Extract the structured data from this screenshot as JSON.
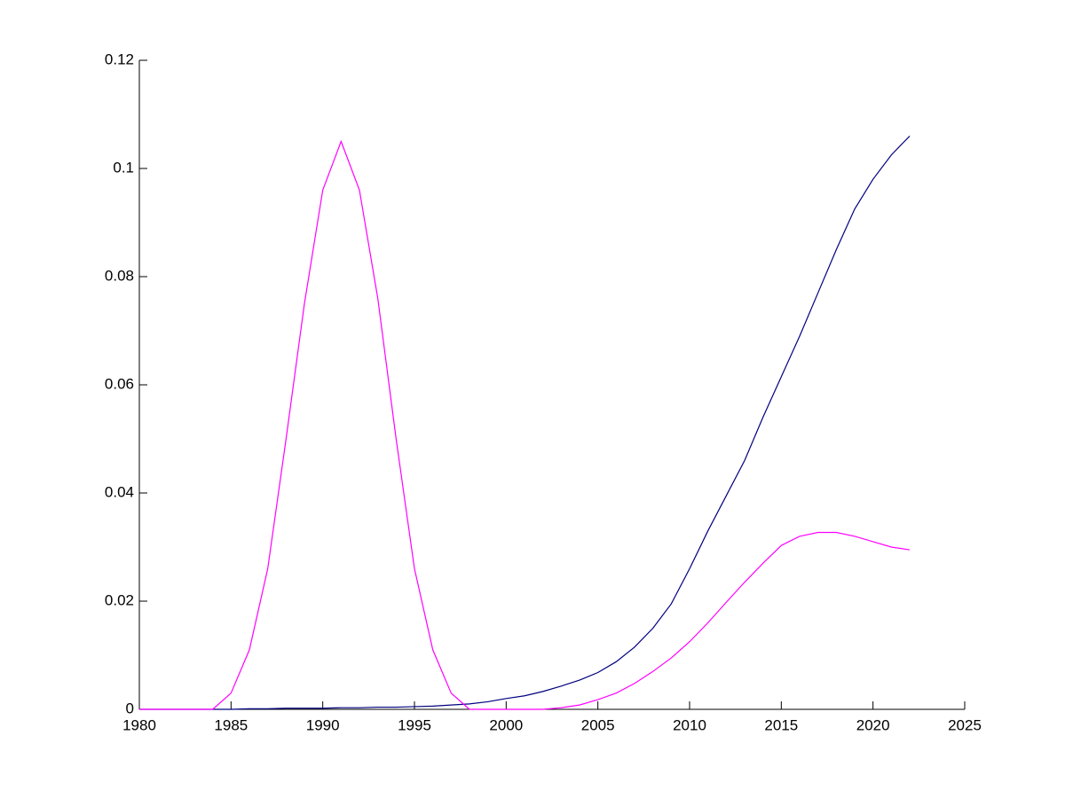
{
  "chart_data": {
    "type": "line",
    "x": [
      1980,
      1981,
      1982,
      1983,
      1984,
      1985,
      1986,
      1987,
      1988,
      1989,
      1990,
      1991,
      1992,
      1993,
      1994,
      1995,
      1996,
      1997,
      1998,
      1999,
      2000,
      2001,
      2002,
      2003,
      2004,
      2005,
      2006,
      2007,
      2008,
      2009,
      2010,
      2011,
      2012,
      2013,
      2014,
      2015,
      2016,
      2017,
      2018,
      2019,
      2020,
      2021,
      2022
    ],
    "series": [
      {
        "color": "#00007f",
        "values": [
          0,
          0,
          0,
          0,
          0,
          0,
          0.0001,
          0.0001,
          0.0002,
          0.0002,
          0.0002,
          0.0003,
          0.0003,
          0.0004,
          0.0004,
          0.0005,
          0.0006,
          0.0008,
          0.001,
          0.0014,
          0.002,
          0.0025,
          0.0033,
          0.0043,
          0.0054,
          0.0068,
          0.0088,
          0.0115,
          0.015,
          0.0195,
          0.026,
          0.033,
          0.0395,
          0.046,
          0.054,
          0.0615,
          0.069,
          0.077,
          0.085,
          0.0925,
          0.098,
          0.1025,
          0.106
        ]
      },
      {
        "color": "#ff00ff",
        "values": [
          0,
          0,
          0,
          0,
          0,
          0.003,
          0.011,
          0.026,
          0.05,
          0.075,
          0.096,
          0.105,
          0.096,
          0.076,
          0.05,
          0.026,
          0.011,
          0.003,
          0,
          0,
          0,
          0,
          0,
          0.0003,
          0.0008,
          0.0018,
          0.003,
          0.0048,
          0.007,
          0.0095,
          0.0125,
          0.016,
          0.0198,
          0.0235,
          0.027,
          0.0303,
          0.032,
          0.0327,
          0.0327,
          0.032,
          0.031,
          0.03,
          0.0295
        ]
      }
    ],
    "xlim": [
      1980,
      2025
    ],
    "xticks": [
      1980,
      1985,
      1990,
      1995,
      2000,
      2005,
      2010,
      2015,
      2020,
      2025
    ],
    "ylim": [
      0,
      0.12
    ],
    "yticks": [
      0,
      0.02,
      0.04,
      0.06,
      0.08,
      0.1,
      0.12
    ]
  }
}
